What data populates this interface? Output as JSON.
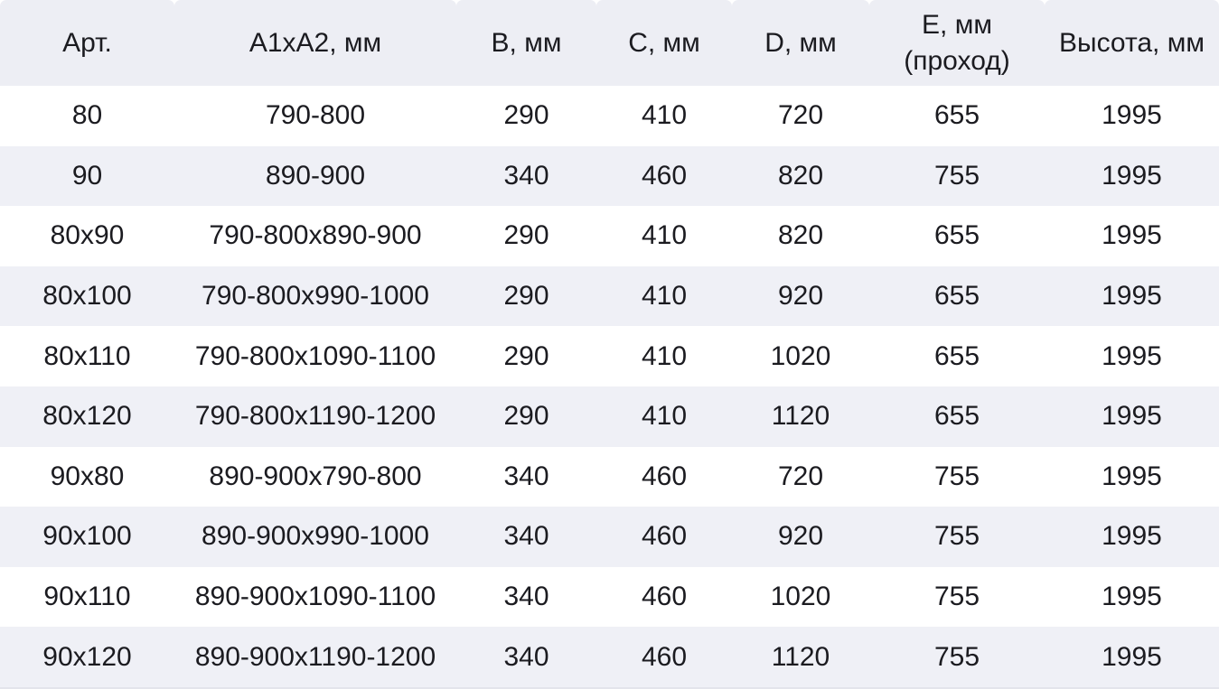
{
  "table": {
    "columns": [
      {
        "label": "Арт."
      },
      {
        "label": "A1xA2, мм"
      },
      {
        "label": "B, мм"
      },
      {
        "label": "C, мм"
      },
      {
        "label": "D, мм"
      },
      {
        "label": "E, мм",
        "sublabel": "(проход)"
      },
      {
        "label": "Высота, мм"
      }
    ],
    "rows": [
      [
        "80",
        "790-800",
        "290",
        "410",
        "720",
        "655",
        "1995"
      ],
      [
        "90",
        "890-900",
        "340",
        "460",
        "820",
        "755",
        "1995"
      ],
      [
        "80x90",
        "790-800x890-900",
        "290",
        "410",
        "820",
        "655",
        "1995"
      ],
      [
        "80x100",
        "790-800x990-1000",
        "290",
        "410",
        "920",
        "655",
        "1995"
      ],
      [
        "80x110",
        "790-800x1090-1100",
        "290",
        "410",
        "1020",
        "655",
        "1995"
      ],
      [
        "80x120",
        "790-800x1190-1200",
        "290",
        "410",
        "1120",
        "655",
        "1995"
      ],
      [
        "90x80",
        "890-900x790-800",
        "340",
        "460",
        "720",
        "755",
        "1995"
      ],
      [
        "90x100",
        "890-900x990-1000",
        "340",
        "460",
        "920",
        "755",
        "1995"
      ],
      [
        "90x110",
        "890-900x1090-1100",
        "340",
        "460",
        "1020",
        "755",
        "1995"
      ],
      [
        "90x120",
        "890-900x1190-1200",
        "340",
        "460",
        "1120",
        "755",
        "1995"
      ]
    ],
    "colors": {
      "header_bg": "#edeef4",
      "stripe_bg": "#eff0f6",
      "row_bg": "#ffffff",
      "text": "#1b1b20"
    }
  }
}
